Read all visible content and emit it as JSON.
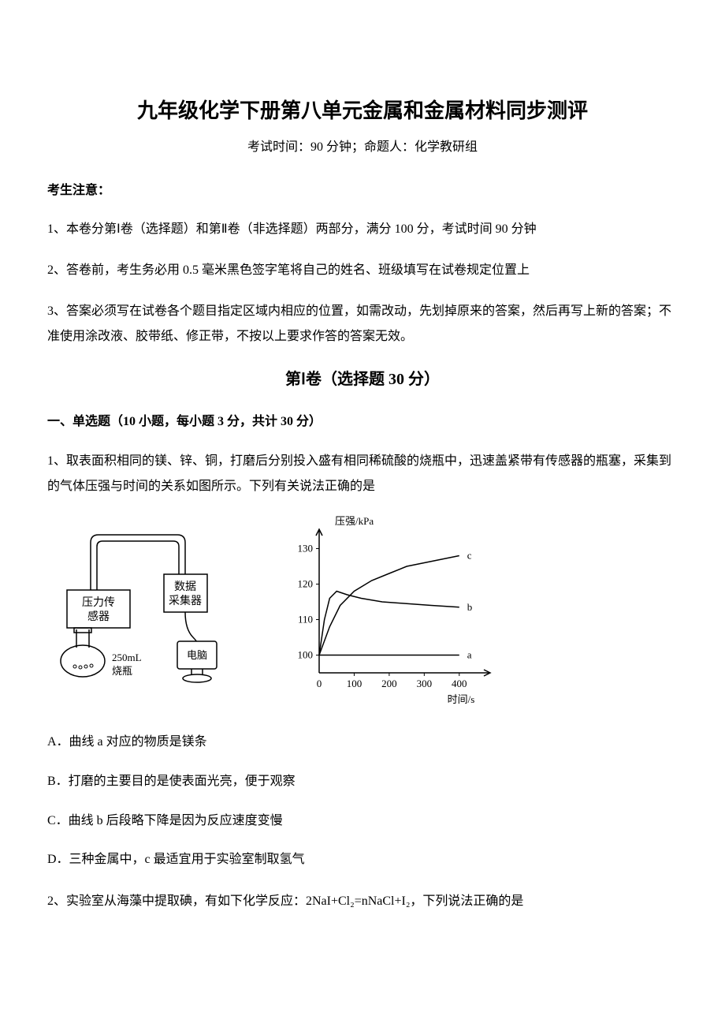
{
  "title": "九年级化学下册第八单元金属和金属材料同步测评",
  "subtitle": "考试时间：90 分钟；命题人：化学教研组",
  "notice": {
    "header": "考生注意：",
    "items": [
      "1、本卷分第Ⅰ卷（选择题）和第Ⅱ卷（非选择题）两部分，满分 100 分，考试时间 90 分钟",
      "2、答卷前，考生务必用 0.5 毫米黑色签字笔将自己的姓名、班级填写在试卷规定位置上",
      "3、答案必须写在试卷各个题目指定区域内相应的位置，如需改动，先划掉原来的答案，然后再写上新的答案；不准使用涂改液、胶带纸、修正带，不按以上要求作答的答案无效。"
    ]
  },
  "section1_header": "第Ⅰ卷（选择题  30 分）",
  "question_section_header": "一、单选题（10 小题，每小题 3 分，共计 30 分）",
  "q1": {
    "text": "1、取表面积相同的镁、锌、铜，打磨后分别投入盛有相同稀硫酸的烧瓶中，迅速盖紧带有传感器的瓶塞，采集到的气体压强与时间的关系如图所示。下列有关说法正确的是",
    "options": {
      "a": "A．曲线 a 对应的物质是镁条",
      "b": "B．打磨的主要目的是使表面光亮，便于观察",
      "c": "C．曲线 b 后段略下降是因为反应速度变慢",
      "d": "D．三种金属中，c 最适宜用于实验室制取氢气"
    }
  },
  "q2": {
    "text": "2、实验室从海藻中提取碘，有如下化学反应：2NaI+Cl₂=nNaCl+I₂，下列说法正确的是"
  },
  "apparatus": {
    "sensor_label": "压力传感器",
    "collector_label": "数据采集器",
    "computer_label": "电脑",
    "flask_label": "250mL",
    "flask_sublabel": "烧瓶"
  },
  "chart": {
    "type": "line",
    "ylabel": "压强/kPa",
    "xlabel": "时间/s",
    "ylim": [
      95,
      135
    ],
    "xlim": [
      0,
      450
    ],
    "yticks": [
      100,
      110,
      120,
      130
    ],
    "xticks": [
      0,
      100,
      200,
      300,
      400
    ],
    "background_color": "#ffffff",
    "axis_color": "#000000",
    "line_color": "#000000",
    "line_width": 1.5,
    "series": {
      "c": {
        "label": "c",
        "points": [
          [
            0,
            100
          ],
          [
            30,
            108
          ],
          [
            60,
            114
          ],
          [
            100,
            118
          ],
          [
            150,
            121
          ],
          [
            200,
            123
          ],
          [
            250,
            125
          ],
          [
            300,
            126
          ],
          [
            350,
            127
          ],
          [
            400,
            128
          ]
        ]
      },
      "b": {
        "label": "b",
        "points": [
          [
            0,
            100
          ],
          [
            15,
            110
          ],
          [
            30,
            116
          ],
          [
            50,
            118
          ],
          [
            80,
            117
          ],
          [
            120,
            116
          ],
          [
            180,
            115
          ],
          [
            250,
            114.5
          ],
          [
            320,
            114
          ],
          [
            400,
            113.5
          ]
        ]
      },
      "a": {
        "label": "a",
        "points": [
          [
            0,
            100
          ],
          [
            100,
            100
          ],
          [
            200,
            100
          ],
          [
            300,
            100
          ],
          [
            400,
            100
          ]
        ]
      }
    },
    "label_fontsize": 13,
    "tick_fontsize": 13
  }
}
